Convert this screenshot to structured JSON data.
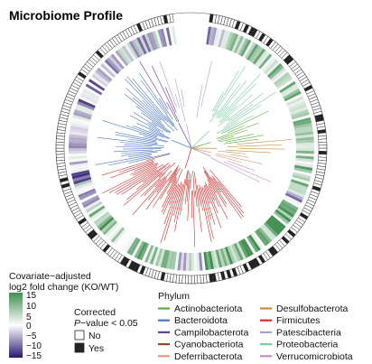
{
  "title": "Microbiome Profile",
  "fold_legend": {
    "label_line1": "Covariate−adjusted",
    "label_line2": "log2 fold change (KO/WT)",
    "ticks": [
      "15",
      "10",
      "5",
      "0",
      "−5",
      "−10",
      "−15"
    ],
    "range": [
      -15,
      15
    ],
    "color_high": "#3f8f4f",
    "color_mid": "#ffffff",
    "color_low": "#2b1670"
  },
  "pvalue_legend": {
    "label_line1": "Corrected",
    "label_line2_italic": "P",
    "label_line2_rest": "−value < 0.05",
    "items": [
      {
        "label": "No",
        "color": "#ffffff"
      },
      {
        "label": "Yes",
        "color": "#222222"
      }
    ]
  },
  "phylum_legend": {
    "label": "Phylum",
    "items": [
      {
        "label": "Actinobacteriota",
        "color": "#5aae3c"
      },
      {
        "label": "Desulfobacterota",
        "color": "#c98a3b"
      },
      {
        "label": "Bacteroidota",
        "color": "#4b77be"
      },
      {
        "label": "Firmicutes",
        "color": "#c8312f"
      },
      {
        "label": "Campilobacterota",
        "color": "#6e3d99"
      },
      {
        "label": "Patescibacteria",
        "color": "#a9a2d1"
      },
      {
        "label": "Cyanobacteriota",
        "color": "#8a4a2b"
      },
      {
        "label": "Proteobacteria",
        "color": "#7cc9a6"
      },
      {
        "label": "Deferribacterota",
        "color": "#e39a79"
      },
      {
        "label": "Verrucomicrobiota",
        "color": "#c78ec2"
      }
    ]
  }
}
